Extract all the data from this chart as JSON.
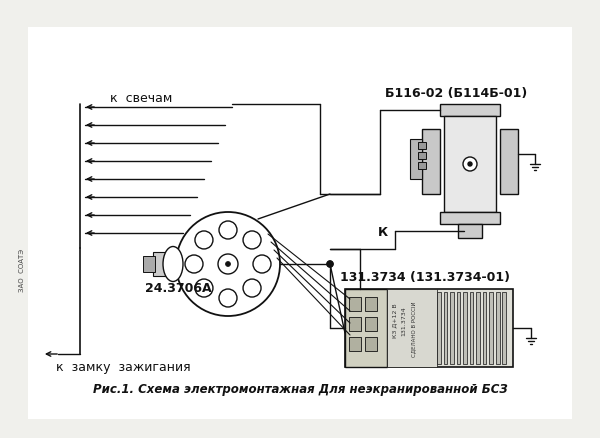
{
  "bg_color": "#f0f0ec",
  "white": "#ffffff",
  "line_color": "#111111",
  "title": "Рис.1. Схема электромонтажная Для неэкранированной БСЗ",
  "label_sparks": "к  свечам",
  "label_ignition": "к  замку  зажигания",
  "label_distributor": "24.3706А",
  "label_coil": "Б116-02 (Б114Б-01)",
  "label_k": "К",
  "label_switch": "131.3734 (131.3734-01)",
  "label_side": "ЗАО  СОАТЭ",
  "fig_width": 6.0,
  "fig_height": 4.39
}
